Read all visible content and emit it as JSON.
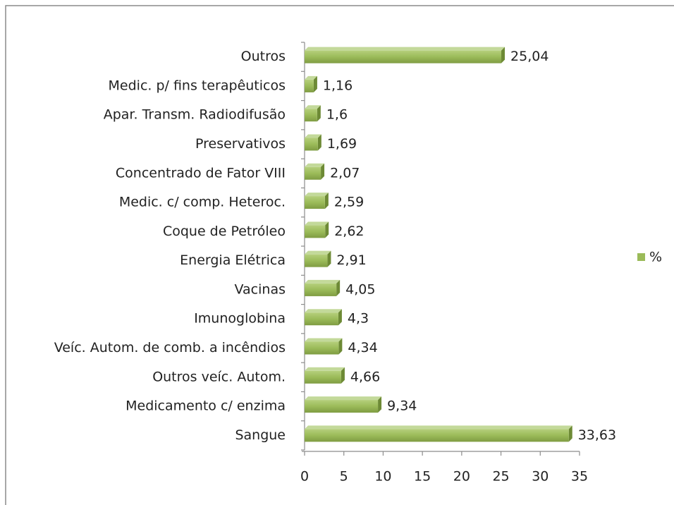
{
  "chart_data": {
    "type": "bar",
    "orientation": "horizontal",
    "categories": [
      "Sangue",
      "Medicamento c/ enzima",
      "Outros veíc. Autom.",
      "Veíc. Autom. de comb. a incêndios",
      "Imunoglobina",
      "Vacinas",
      "Energia Elétrica",
      "Coque de Petróleo",
      "Medic. c/ comp. Heteroc.",
      "Concentrado de Fator VIII",
      "Preservativos",
      "Apar. Transm. Radiodifusão",
      "Medic. p/ fins terapêuticos",
      "Outros"
    ],
    "series": [
      {
        "name": "%",
        "color": "#9bbb59",
        "values": [
          33.63,
          9.34,
          4.66,
          4.34,
          4.3,
          4.05,
          2.91,
          2.62,
          2.59,
          2.07,
          1.69,
          1.6,
          1.16,
          25.04
        ],
        "value_labels": [
          "33,63",
          "9,34",
          "4,66",
          "4,34",
          "4,3",
          "4,05",
          "2,91",
          "2,62",
          "2,59",
          "2,07",
          "1,69",
          "1,6",
          "1,16",
          "25,04"
        ]
      }
    ],
    "xlim": [
      0,
      35
    ],
    "xticks": [
      0,
      5,
      10,
      15,
      20,
      25,
      30,
      35
    ],
    "legend": "right"
  }
}
